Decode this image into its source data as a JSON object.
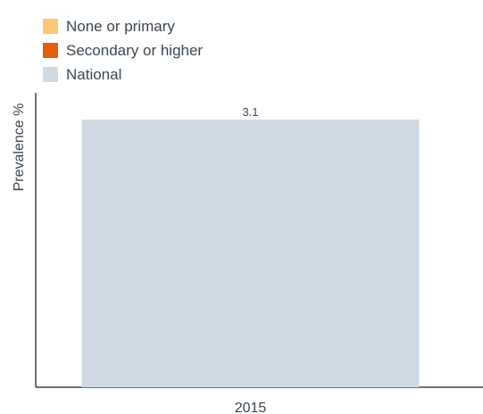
{
  "legend": [
    {
      "label": "None or primary",
      "color": "#fcc876"
    },
    {
      "label": "Secondary or higher",
      "color": "#e35f0e"
    },
    {
      "label": "National",
      "color": "#d0dae5"
    }
  ],
  "chart_data": {
    "type": "bar",
    "categories": [
      "2015"
    ],
    "series": [
      {
        "name": "National",
        "values": [
          3.1
        ],
        "color": "#d0dae5"
      }
    ],
    "ylabel": "Prevalence %",
    "ylim": [
      0,
      3.1
    ],
    "grid": false,
    "legend_position": "top-left"
  }
}
